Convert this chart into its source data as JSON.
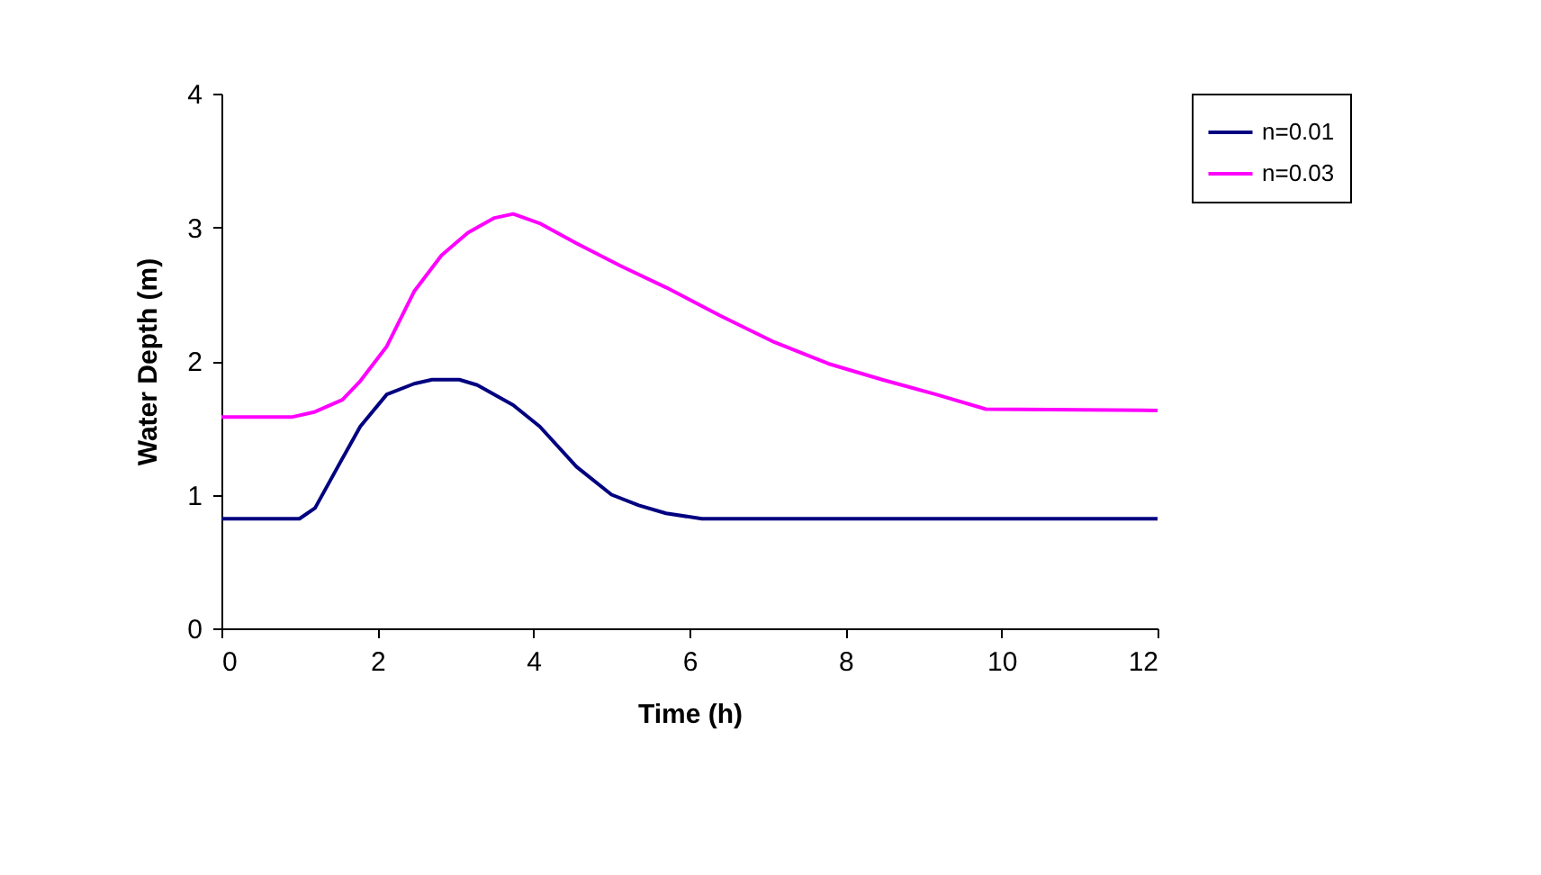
{
  "chart_data": {
    "type": "line",
    "xlabel": "Time (h)",
    "ylabel": "Water Depth (m)",
    "xlim": [
      0,
      12
    ],
    "xticks": [
      0,
      2,
      4,
      6,
      8,
      10,
      12
    ],
    "ylim": [
      0,
      4
    ],
    "yticks": [
      0,
      1,
      2,
      3,
      4
    ],
    "grid": false,
    "legend": "right",
    "marker": "none",
    "line_style": "solid",
    "series": [
      {
        "name": "n=0.01",
        "color": "#000080",
        "x": [
          0,
          1.0,
          1.2,
          1.55,
          1.78,
          2.12,
          2.47,
          2.7,
          3.05,
          3.28,
          3.74,
          4.08,
          4.55,
          5.0,
          5.35,
          5.7,
          6.16,
          12
        ],
        "values": [
          0.82,
          0.82,
          0.9,
          1.27,
          1.51,
          1.75,
          1.83,
          1.86,
          1.86,
          1.82,
          1.67,
          1.51,
          1.21,
          1.0,
          0.92,
          0.86,
          0.82,
          0.82
        ]
      },
      {
        "name": "n=0.03",
        "color": "#ff00ff",
        "x": [
          0,
          0.9,
          1.2,
          1.55,
          1.78,
          2.12,
          2.47,
          2.82,
          3.16,
          3.5,
          3.74,
          4.08,
          4.55,
          5.12,
          5.7,
          6.39,
          7.09,
          7.78,
          8.47,
          9.16,
          9.8,
          12
        ],
        "values": [
          1.58,
          1.58,
          1.62,
          1.71,
          1.85,
          2.11,
          2.52,
          2.79,
          2.96,
          3.07,
          3.1,
          3.03,
          2.88,
          2.71,
          2.55,
          2.34,
          2.14,
          1.98,
          1.86,
          1.75,
          1.64,
          1.63
        ]
      }
    ]
  }
}
